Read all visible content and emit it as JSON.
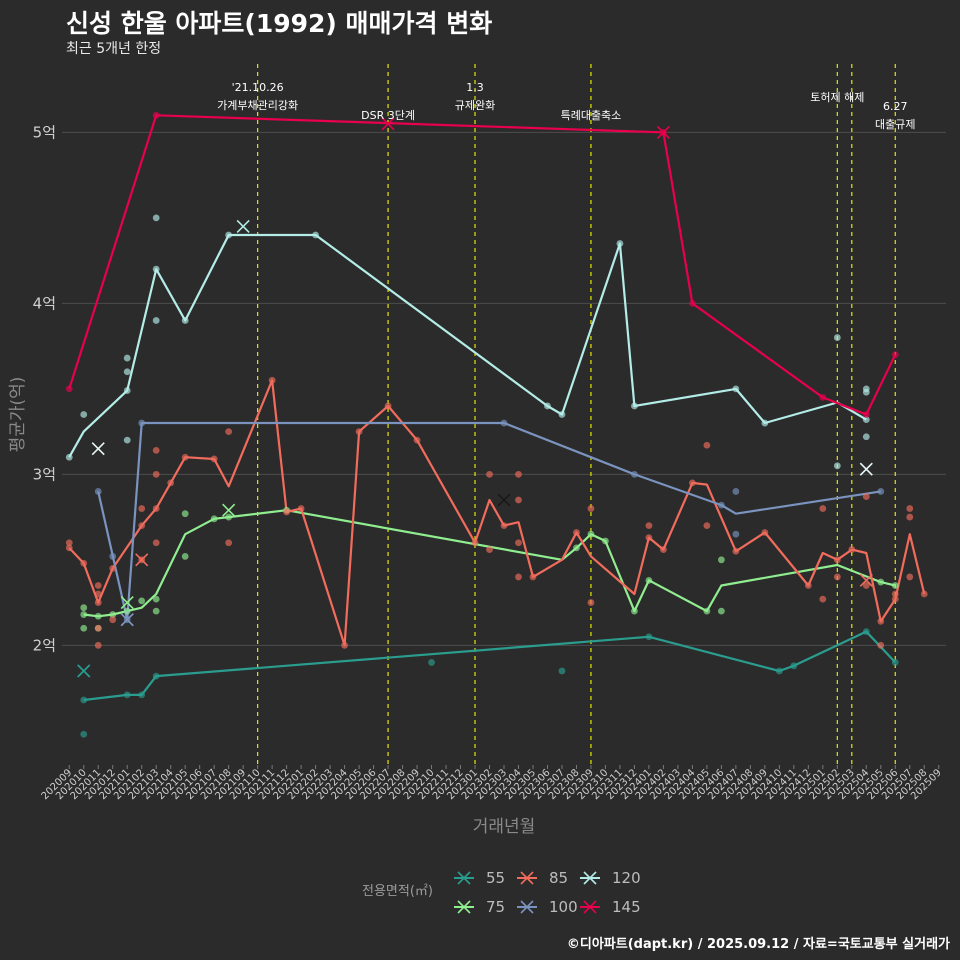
{
  "title": "신성 한울 아파트(1992) 매매가격 변화",
  "subtitle": "최근 5개년 한정",
  "caption": "©디아파트(dapt.kr) / 2025.09.12 / 자료=국토교통부 실거래가",
  "chart_data": {
    "type": "line",
    "xlabel": "거래년월",
    "ylabel": "평균가(억)",
    "ylim": [
      1.3,
      5.4
    ],
    "yticks": [
      {
        "value": 2,
        "label": "2억"
      },
      {
        "value": 3,
        "label": "3억"
      },
      {
        "value": 4,
        "label": "4억"
      },
      {
        "value": 5,
        "label": "5억"
      }
    ],
    "x": [
      "202009",
      "202010",
      "202011",
      "202012",
      "202101",
      "202102",
      "202103",
      "202104",
      "202105",
      "202106",
      "202107",
      "202108",
      "202109",
      "202110",
      "202111",
      "202112",
      "202201",
      "202202",
      "202203",
      "202204",
      "202205",
      "202206",
      "202207",
      "202208",
      "202209",
      "202210",
      "202211",
      "202212",
      "202301",
      "202302",
      "202303",
      "202304",
      "202305",
      "202306",
      "202307",
      "202308",
      "202309",
      "202310",
      "202311",
      "202312",
      "202401",
      "202402",
      "202403",
      "202404",
      "202405",
      "202406",
      "202407",
      "202408",
      "202409",
      "202410",
      "202411",
      "202412",
      "202501",
      "202502",
      "202503",
      "202504",
      "202505",
      "202506",
      "202507",
      "202508",
      "202509"
    ],
    "legend_title": "전용면적(㎡)",
    "legend_position": "bottom",
    "grid": true,
    "series": [
      {
        "name": "55",
        "color": "#2a9d8f",
        "points": [
          [
            1,
            1.68
          ],
          [
            4,
            1.71
          ],
          [
            5,
            1.71
          ],
          [
            6,
            1.82
          ],
          [
            40,
            2.05
          ],
          [
            49,
            1.85
          ],
          [
            50,
            1.88
          ],
          [
            55,
            2.08
          ],
          [
            57,
            1.9
          ]
        ],
        "scatter": [
          [
            1,
            1.48
          ],
          [
            1,
            1.68
          ],
          [
            4,
            1.71
          ],
          [
            5,
            1.71
          ],
          [
            6,
            1.82
          ],
          [
            25,
            1.9
          ],
          [
            34,
            1.85
          ],
          [
            40,
            2.05
          ],
          [
            49,
            1.85
          ],
          [
            50,
            1.88
          ],
          [
            55,
            2.08
          ],
          [
            57,
            1.9
          ]
        ],
        "max_marker": [
          1,
          1.85
        ]
      },
      {
        "name": "75",
        "color": "#90ee90",
        "points": [
          [
            1,
            2.18
          ],
          [
            2,
            2.17
          ],
          [
            3,
            2.18
          ],
          [
            4,
            2.2
          ],
          [
            5,
            2.22
          ],
          [
            6,
            2.3
          ],
          [
            8,
            2.65
          ],
          [
            10,
            2.74
          ],
          [
            11,
            2.75
          ],
          [
            15,
            2.79
          ],
          [
            34,
            2.5
          ],
          [
            35,
            2.57
          ],
          [
            36,
            2.65
          ],
          [
            37,
            2.61
          ],
          [
            39,
            2.2
          ],
          [
            40,
            2.38
          ],
          [
            44,
            2.2
          ],
          [
            45,
            2.35
          ],
          [
            53,
            2.47
          ],
          [
            56,
            2.37
          ],
          [
            57,
            2.35
          ]
        ],
        "scatter": [
          [
            1,
            2.22
          ],
          [
            1,
            2.18
          ],
          [
            1,
            2.1
          ],
          [
            2,
            2.17
          ],
          [
            2,
            2.1
          ],
          [
            3,
            2.18
          ],
          [
            4,
            2.2
          ],
          [
            5,
            2.26
          ],
          [
            6,
            2.27
          ],
          [
            6,
            2.2
          ],
          [
            8,
            2.77
          ],
          [
            8,
            2.52
          ],
          [
            10,
            2.74
          ],
          [
            11,
            2.75
          ],
          [
            15,
            2.79
          ],
          [
            35,
            2.57
          ],
          [
            36,
            2.65
          ],
          [
            37,
            2.61
          ],
          [
            39,
            2.2
          ],
          [
            40,
            2.38
          ],
          [
            44,
            2.2
          ],
          [
            45,
            2.5
          ],
          [
            45,
            2.2
          ],
          [
            56,
            2.37
          ],
          [
            57,
            2.35
          ]
        ],
        "max_marker": [
          11,
          2.79
        ]
      },
      {
        "name": "85",
        "color": "#f16c5c",
        "points": [
          [
            0,
            2.57
          ],
          [
            1,
            2.48
          ],
          [
            2,
            2.25
          ],
          [
            3,
            2.45
          ],
          [
            5,
            2.7
          ],
          [
            6,
            2.8
          ],
          [
            7,
            2.95
          ],
          [
            8,
            3.1
          ],
          [
            10,
            3.09
          ],
          [
            11,
            2.93
          ],
          [
            14,
            3.55
          ],
          [
            15,
            2.78
          ],
          [
            16,
            2.8
          ],
          [
            19,
            2.0
          ],
          [
            20,
            3.25
          ],
          [
            22,
            3.4
          ],
          [
            24,
            3.2
          ],
          [
            28,
            2.6
          ],
          [
            29,
            2.85
          ],
          [
            30,
            2.7
          ],
          [
            31,
            2.72
          ],
          [
            32,
            2.4
          ],
          [
            34,
            2.5
          ],
          [
            35,
            2.66
          ],
          [
            36,
            2.52
          ],
          [
            39,
            2.3
          ],
          [
            40,
            2.63
          ],
          [
            41,
            2.56
          ],
          [
            43,
            2.95
          ],
          [
            44,
            2.94
          ],
          [
            46,
            2.55
          ],
          [
            48,
            2.66
          ],
          [
            51,
            2.35
          ],
          [
            52,
            2.54
          ],
          [
            53,
            2.5
          ],
          [
            54,
            2.56
          ],
          [
            55,
            2.54
          ],
          [
            56,
            2.14
          ],
          [
            57,
            2.27
          ],
          [
            58,
            2.65
          ],
          [
            59,
            2.3
          ]
        ],
        "scatter": [
          [
            0,
            2.6
          ],
          [
            0,
            2.57
          ],
          [
            1,
            2.48
          ],
          [
            2,
            2.35
          ],
          [
            2,
            2.3
          ],
          [
            2,
            2.25
          ],
          [
            2,
            2.1
          ],
          [
            2,
            2.0
          ],
          [
            3,
            2.45
          ],
          [
            3,
            2.15
          ],
          [
            5,
            2.7
          ],
          [
            5,
            2.8
          ],
          [
            5,
            2.5
          ],
          [
            6,
            2.8
          ],
          [
            6,
            3.14
          ],
          [
            6,
            3.0
          ],
          [
            6,
            2.6
          ],
          [
            7,
            2.95
          ],
          [
            8,
            3.1
          ],
          [
            10,
            3.09
          ],
          [
            11,
            2.6
          ],
          [
            11,
            3.25
          ],
          [
            14,
            3.55
          ],
          [
            15,
            2.78
          ],
          [
            16,
            2.8
          ],
          [
            19,
            2.0
          ],
          [
            20,
            3.25
          ],
          [
            22,
            3.4
          ],
          [
            24,
            3.2
          ],
          [
            28,
            2.6
          ],
          [
            29,
            3.0
          ],
          [
            29,
            2.56
          ],
          [
            30,
            2.7
          ],
          [
            31,
            3.0
          ],
          [
            31,
            2.85
          ],
          [
            31,
            2.6
          ],
          [
            32,
            2.4
          ],
          [
            31,
            2.4
          ],
          [
            35,
            2.66
          ],
          [
            36,
            2.8
          ],
          [
            36,
            2.25
          ],
          [
            40,
            2.7
          ],
          [
            40,
            2.63
          ],
          [
            41,
            2.56
          ],
          [
            43,
            2.95
          ],
          [
            44,
            2.7
          ],
          [
            44,
            3.17
          ],
          [
            46,
            2.55
          ],
          [
            48,
            2.66
          ],
          [
            51,
            2.35
          ],
          [
            52,
            2.8
          ],
          [
            52,
            2.27
          ],
          [
            53,
            2.5
          ],
          [
            53,
            2.4
          ],
          [
            54,
            2.56
          ],
          [
            55,
            2.35
          ],
          [
            55,
            2.87
          ],
          [
            56,
            2.14
          ],
          [
            56,
            2.0
          ],
          [
            57,
            2.27
          ],
          [
            57,
            2.3
          ],
          [
            58,
            2.8
          ],
          [
            58,
            2.75
          ],
          [
            58,
            2.4
          ],
          [
            59,
            2.3
          ]
        ],
        "max_marker": [
          5,
          2.5
        ]
      },
      {
        "name": "100",
        "color": "#7a93bf",
        "points": [
          [
            2,
            2.9
          ],
          [
            4,
            2.15
          ],
          [
            5,
            3.3
          ],
          [
            30,
            3.3
          ],
          [
            39,
            3.0
          ],
          [
            45,
            2.82
          ],
          [
            46,
            2.77
          ],
          [
            56,
            2.9
          ]
        ],
        "scatter": [
          [
            2,
            2.9
          ],
          [
            3,
            2.52
          ],
          [
            4,
            2.15
          ],
          [
            5,
            3.3
          ],
          [
            30,
            3.3
          ],
          [
            39,
            3.0
          ],
          [
            45,
            2.82
          ],
          [
            46,
            2.9
          ],
          [
            46,
            2.65
          ],
          [
            56,
            2.9
          ]
        ],
        "max_marker": [
          4,
          2.15
        ]
      },
      {
        "name": "120",
        "color": "#b4ece8",
        "points": [
          [
            0,
            3.1
          ],
          [
            1,
            3.25
          ],
          [
            4,
            3.49
          ],
          [
            6,
            4.2
          ],
          [
            8,
            3.9
          ],
          [
            11,
            4.4
          ],
          [
            17,
            4.4
          ],
          [
            33,
            3.4
          ],
          [
            34,
            3.35
          ],
          [
            38,
            4.35
          ],
          [
            39,
            3.4
          ],
          [
            46,
            3.5
          ],
          [
            48,
            3.3
          ],
          [
            53,
            3.42
          ],
          [
            55,
            3.32
          ]
        ],
        "scatter": [
          [
            0,
            3.1
          ],
          [
            1,
            3.35
          ],
          [
            4,
            3.68
          ],
          [
            4,
            3.6
          ],
          [
            4,
            3.2
          ],
          [
            4,
            3.49
          ],
          [
            6,
            4.5
          ],
          [
            6,
            3.9
          ],
          [
            6,
            4.2
          ],
          [
            8,
            3.9
          ],
          [
            11,
            4.4
          ],
          [
            17,
            4.4
          ],
          [
            33,
            3.4
          ],
          [
            34,
            3.35
          ],
          [
            38,
            4.35
          ],
          [
            39,
            3.4
          ],
          [
            46,
            3.5
          ],
          [
            48,
            3.3
          ],
          [
            53,
            3.8
          ],
          [
            53,
            3.05
          ],
          [
            55,
            3.5
          ],
          [
            55,
            3.48
          ],
          [
            55,
            3.22
          ],
          [
            55,
            3.32
          ]
        ],
        "max_marker": [
          12,
          4.45
        ]
      },
      {
        "name": "145",
        "color": "#e8004d",
        "points": [
          [
            0,
            3.5
          ],
          [
            6,
            5.1
          ],
          [
            41,
            5.0
          ],
          [
            43,
            4.0
          ],
          [
            52,
            3.45
          ],
          [
            55,
            3.35
          ],
          [
            57,
            3.7
          ]
        ],
        "scatter": [
          [
            0,
            3.5
          ],
          [
            6,
            5.1
          ],
          [
            41,
            5.0
          ],
          [
            43,
            4.0
          ],
          [
            52,
            3.45
          ],
          [
            55,
            3.35
          ],
          [
            57,
            3.7
          ]
        ],
        "max_marker": [
          41,
          5.0
        ]
      }
    ],
    "extra_max_markers": [
      {
        "series": "55",
        "x": 1,
        "y": 1.85
      },
      {
        "series": "120",
        "x": 2,
        "y": 3.15
      },
      {
        "series": "100",
        "x": 4,
        "y": 2.15
      },
      {
        "series": "75",
        "x": 4,
        "y": 2.25
      },
      {
        "series": "85",
        "x": 30,
        "y": 2.85
      },
      {
        "series": "145",
        "x": 22,
        "y": 5.05
      },
      {
        "series": "120",
        "x": 55,
        "y": 3.03
      },
      {
        "series": "85",
        "x": 55,
        "y": 2.38
      }
    ],
    "vlines": [
      {
        "x": 13,
        "line1": "'21.10.26",
        "line2": "가계부채관리강화"
      },
      {
        "x": 22,
        "line1": "",
        "line2": "DSR 3단계"
      },
      {
        "x": 28,
        "line1": "1.3",
        "line2": "규제완화"
      },
      {
        "x": 36,
        "line1": "",
        "line2": "특례대출축소"
      },
      {
        "x": 53,
        "line1": "토허제 해제",
        "line2": ""
      },
      {
        "x": 54,
        "line1": "",
        "line2": ""
      },
      {
        "x": 57,
        "line1": "6.27",
        "line2": "대출규제"
      }
    ]
  }
}
